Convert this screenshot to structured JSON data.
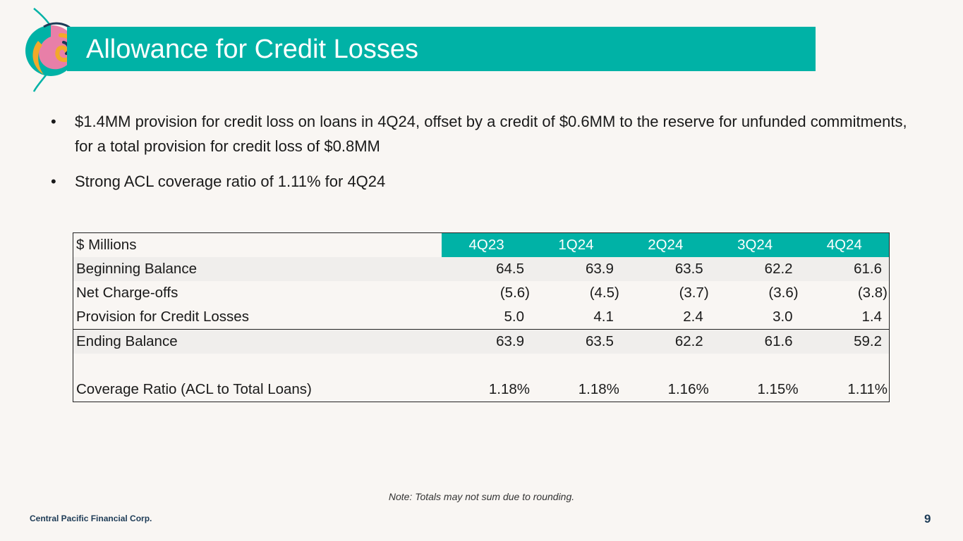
{
  "title": "Allowance for Credit Losses",
  "bullets": [
    "$1.4MM provision for credit loss on loans in 4Q24, offset by a credit of $0.6MM to the reserve for unfunded commitments, for a total provision for credit loss of $0.8MM",
    "Strong ACL coverage ratio of 1.11% for 4Q24"
  ],
  "bullet_symbol": "•",
  "table": {
    "header_label": "$ Millions",
    "quarters": [
      "4Q23",
      "1Q24",
      "2Q24",
      "3Q24",
      "4Q24"
    ],
    "rows": {
      "beginning": {
        "label": "Beginning Balance",
        "values": [
          "64.5",
          "63.9",
          "63.5",
          "62.2",
          "61.6"
        ]
      },
      "chargeoffs": {
        "label": "Net Charge-offs",
        "values": [
          "(5.6)",
          "(4.5)",
          "(3.7)",
          "(3.6)",
          "(3.8)"
        ]
      },
      "provision": {
        "label": "Provision for Credit Losses",
        "values": [
          "5.0",
          "4.1",
          "2.4",
          "3.0",
          "1.4"
        ]
      },
      "ending": {
        "label": "Ending Balance",
        "values": [
          "63.9",
          "63.5",
          "62.2",
          "61.6",
          "59.2"
        ]
      },
      "coverage": {
        "label": "Coverage Ratio (ACL to Total Loans)",
        "values": [
          "1.18%",
          "1.18%",
          "1.16%",
          "1.15%",
          "1.11%"
        ]
      }
    }
  },
  "note": "Note: Totals may not sum due to rounding.",
  "footer": "Central Pacific Financial Corp.",
  "page_number": "9",
  "colors": {
    "accent": "#00b2a6",
    "background": "#f9f6f3",
    "footer_text": "#1d3b56"
  },
  "logo": {
    "icon": "swirl-logo-icon"
  }
}
